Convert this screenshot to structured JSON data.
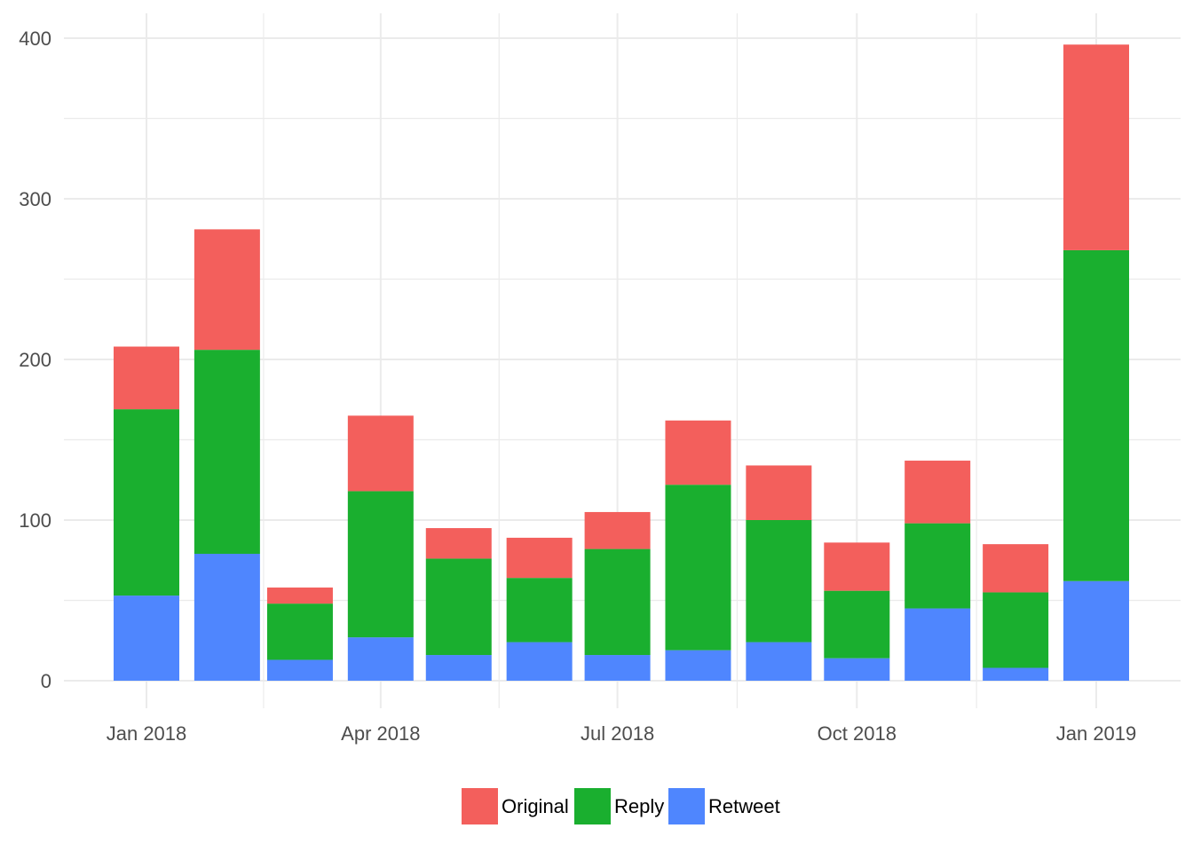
{
  "chart_data": {
    "type": "bar",
    "stacked": true,
    "title": "",
    "xlabel": "",
    "ylabel": "",
    "categories": [
      "2018-01",
      "2018-02",
      "2018-03",
      "2018-04",
      "2018-05",
      "2018-06",
      "2018-07",
      "2018-08",
      "2018-09",
      "2018-10",
      "2018-11",
      "2018-12",
      "2019-01"
    ],
    "series": [
      {
        "name": "Retweet",
        "color": "#4f86fe",
        "values": [
          53,
          79,
          13,
          27,
          16,
          24,
          16,
          19,
          24,
          14,
          45,
          8,
          62
        ]
      },
      {
        "name": "Reply",
        "color": "#1aaf2f",
        "values": [
          116,
          127,
          35,
          91,
          60,
          40,
          66,
          103,
          76,
          42,
          53,
          47,
          206
        ]
      },
      {
        "name": "Original",
        "color": "#f35f5c",
        "values": [
          39,
          75,
          10,
          47,
          19,
          25,
          23,
          40,
          34,
          30,
          39,
          30,
          128
        ]
      }
    ],
    "ylim": [
      0,
      400
    ],
    "yticks": [
      "0",
      "100",
      "200",
      "300",
      "400"
    ],
    "xticks": [
      "Jan 2018",
      "Apr 2018",
      "Jul 2018",
      "Oct 2018",
      "Jan 2019"
    ],
    "grid": true,
    "legend": {
      "position": "bottom",
      "entries": [
        "Original",
        "Reply",
        "Retweet"
      ]
    }
  }
}
